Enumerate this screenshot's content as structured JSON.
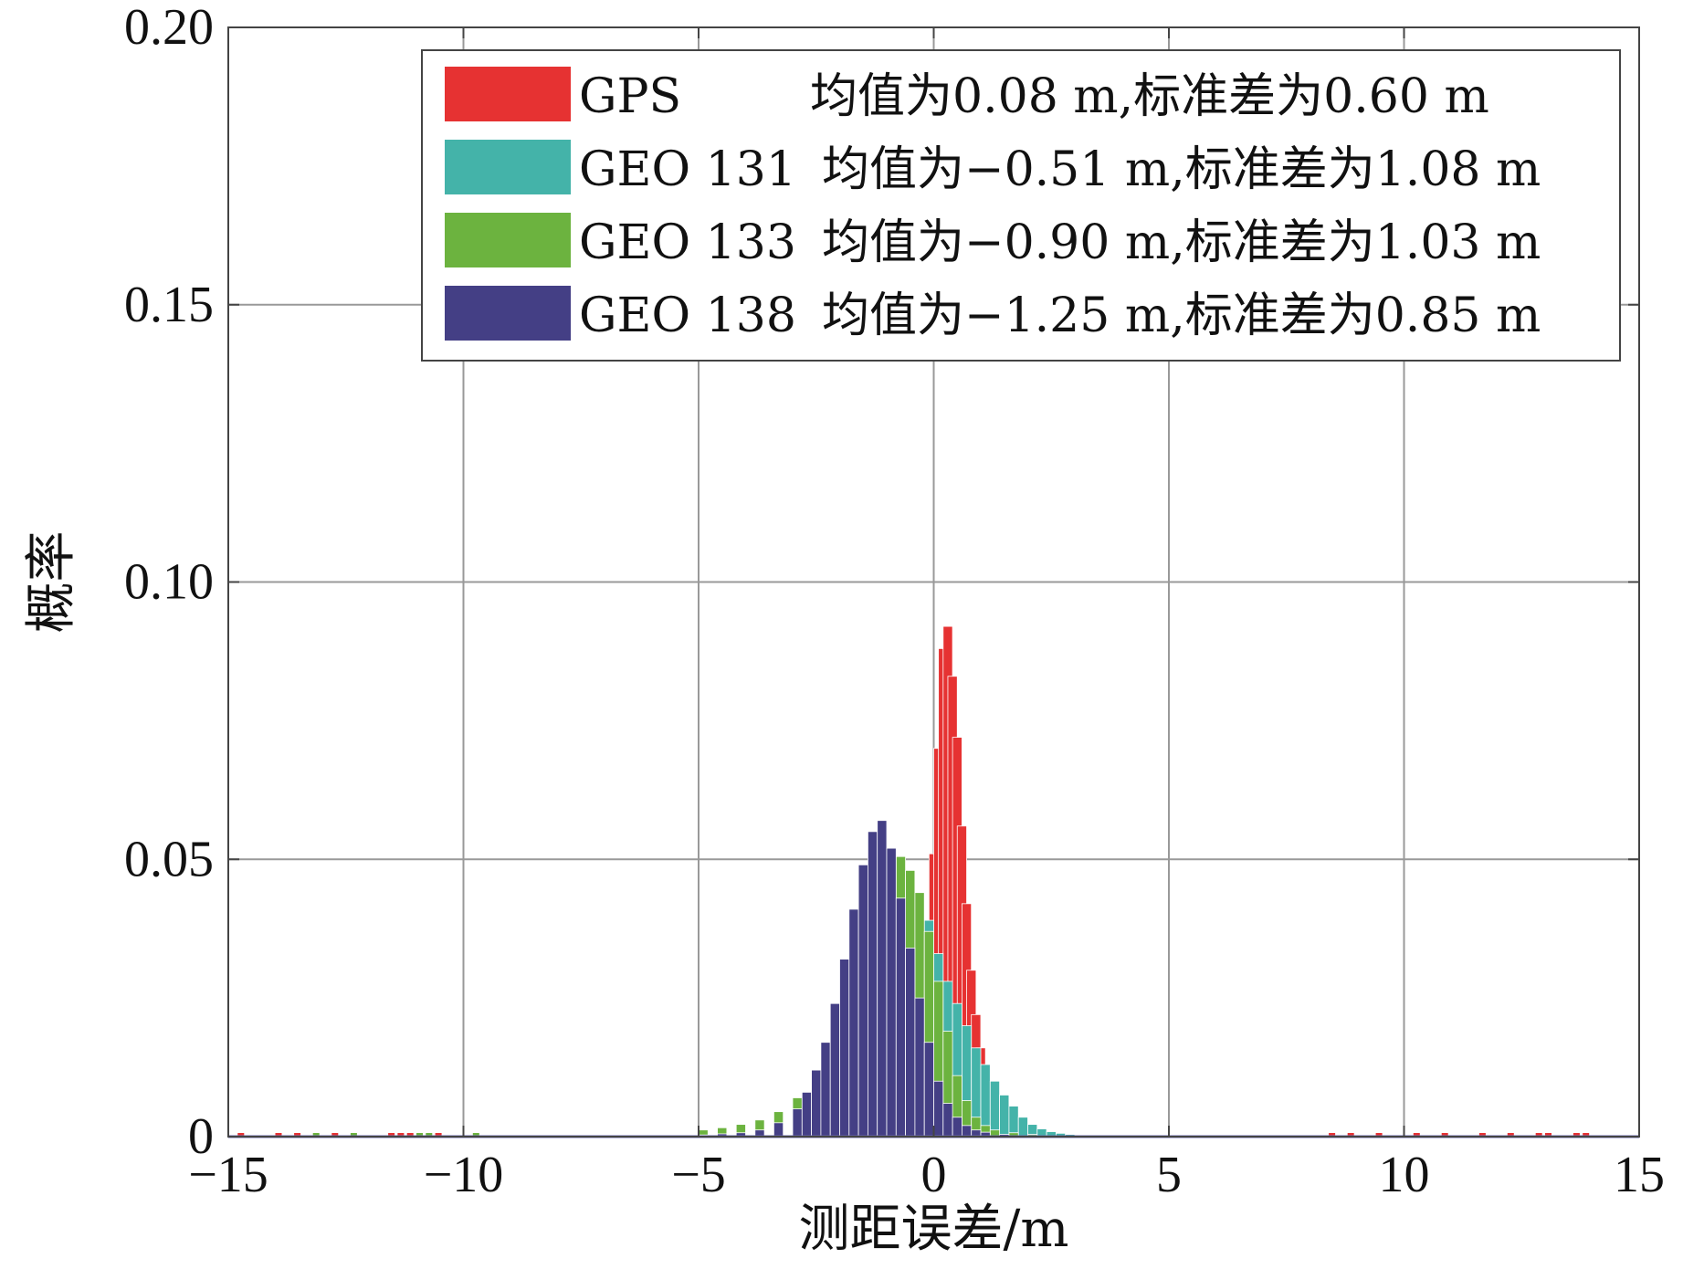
{
  "chart_data": {
    "type": "bar",
    "title": "",
    "xlabel": "测距误差/m",
    "ylabel": "概率",
    "xlim": [
      -15,
      15
    ],
    "ylim": [
      0,
      0.2
    ],
    "x_ticks": [
      -15,
      -10,
      -5,
      0,
      5,
      10,
      15
    ],
    "x_tick_labels": [
      "−15",
      "−10",
      "−5",
      "0",
      "5",
      "10",
      "15"
    ],
    "y_ticks": [
      0,
      0.05,
      0.1,
      0.15,
      0.2
    ],
    "y_tick_labels": [
      "0",
      "0.05",
      "0.10",
      "0.15",
      "0.20"
    ],
    "grid": true,
    "legend_position": "top-right",
    "bin_width": 0.2,
    "series": [
      {
        "name": "GPS",
        "legend_label": "均值为0.08 m,标准差为0.60 m",
        "color": "#e63232",
        "stats": {
          "mean": 0.08,
          "std": 0.6
        },
        "bins": [
          [
            -3.0,
            0.0005
          ],
          [
            -2.6,
            0.0008
          ],
          [
            -2.2,
            0.0011
          ],
          [
            -1.8,
            0.0015
          ],
          [
            -1.4,
            0.003
          ],
          [
            -1.0,
            0.006
          ],
          [
            -0.6,
            0.015
          ],
          [
            -0.2,
            0.036
          ],
          [
            -0.1,
            0.051
          ],
          [
            0.0,
            0.07
          ],
          [
            0.1,
            0.088
          ],
          [
            0.2,
            0.092
          ],
          [
            0.3,
            0.083
          ],
          [
            0.4,
            0.072
          ],
          [
            0.5,
            0.056
          ],
          [
            0.6,
            0.042
          ],
          [
            0.7,
            0.03
          ],
          [
            0.8,
            0.022
          ],
          [
            0.9,
            0.016
          ],
          [
            1.0,
            0.011
          ],
          [
            1.1,
            0.0075
          ],
          [
            1.3,
            0.004
          ],
          [
            1.6,
            0.002
          ],
          [
            2.0,
            0.0009
          ],
          [
            2.6,
            0.0005
          ],
          [
            3.2,
            0.0003
          ]
        ],
        "outliers": [
          -14.8,
          -14.0,
          -13.6,
          -12.8,
          -11.6,
          -11.4,
          -11.2,
          -10.6,
          8.4,
          8.8,
          9.4,
          10.2,
          10.8,
          11.6,
          12.2,
          12.8,
          13.0,
          13.6,
          13.8
        ]
      },
      {
        "name": "GEO 131",
        "legend_label": "均值为−0.51 m,标准差为1.08 m",
        "color": "#44b3a9",
        "stats": {
          "mean": -0.51,
          "std": 1.08
        },
        "bins": [
          [
            -4.6,
            0.001
          ],
          [
            -4.2,
            0.0013
          ],
          [
            -3.8,
            0.0018
          ],
          [
            -3.4,
            0.0025
          ],
          [
            -3.0,
            0.004
          ],
          [
            -2.6,
            0.006
          ],
          [
            -2.2,
            0.01
          ],
          [
            -1.8,
            0.017
          ],
          [
            -1.4,
            0.027
          ],
          [
            -1.0,
            0.038
          ],
          [
            -0.8,
            0.044
          ],
          [
            -0.6,
            0.048
          ],
          [
            -0.4,
            0.044
          ],
          [
            -0.2,
            0.039
          ],
          [
            0.0,
            0.033
          ],
          [
            0.2,
            0.028
          ],
          [
            0.4,
            0.024
          ],
          [
            0.6,
            0.02
          ],
          [
            0.8,
            0.016
          ],
          [
            1.0,
            0.013
          ],
          [
            1.2,
            0.01
          ],
          [
            1.4,
            0.0075
          ],
          [
            1.6,
            0.0055
          ],
          [
            1.8,
            0.0035
          ],
          [
            2.0,
            0.0022
          ],
          [
            2.2,
            0.0014
          ],
          [
            2.4,
            0.0009
          ],
          [
            2.6,
            0.0006
          ],
          [
            2.8,
            0.0004
          ]
        ],
        "outliers": []
      },
      {
        "name": "GEO 133",
        "legend_label": "均值为−0.90 m,标准差为1.03 m",
        "color": "#6cb33f",
        "stats": {
          "mean": -0.9,
          "std": 1.03
        },
        "bins": [
          [
            -5.0,
            0.0012
          ],
          [
            -4.6,
            0.0016
          ],
          [
            -4.2,
            0.0022
          ],
          [
            -3.8,
            0.003
          ],
          [
            -3.4,
            0.0045
          ],
          [
            -3.0,
            0.007
          ],
          [
            -2.6,
            0.011
          ],
          [
            -2.2,
            0.018
          ],
          [
            -1.8,
            0.027
          ],
          [
            -1.4,
            0.037
          ],
          [
            -1.2,
            0.042
          ],
          [
            -1.0,
            0.047
          ],
          [
            -0.8,
            0.0505
          ],
          [
            -0.6,
            0.048
          ],
          [
            -0.4,
            0.044
          ],
          [
            -0.2,
            0.037
          ],
          [
            0.0,
            0.028
          ],
          [
            0.2,
            0.019
          ],
          [
            0.4,
            0.011
          ],
          [
            0.6,
            0.0065
          ],
          [
            0.8,
            0.0035
          ],
          [
            1.0,
            0.002
          ],
          [
            1.2,
            0.0012
          ],
          [
            1.6,
            0.0007
          ],
          [
            2.0,
            0.0004
          ]
        ],
        "outliers": [
          -13.2,
          -12.4,
          -11.0,
          -10.8,
          -9.8
        ]
      },
      {
        "name": "GEO 138",
        "legend_label": "均值为−1.25 m,标准差为0.85 m",
        "color": "#443f85",
        "stats": {
          "mean": -1.25,
          "std": 0.85
        },
        "bins": [
          [
            -5.0,
            0.0003
          ],
          [
            -4.6,
            0.0005
          ],
          [
            -4.2,
            0.0007
          ],
          [
            -3.8,
            0.0012
          ],
          [
            -3.4,
            0.0025
          ],
          [
            -3.0,
            0.005
          ],
          [
            -2.8,
            0.008
          ],
          [
            -2.6,
            0.012
          ],
          [
            -2.4,
            0.017
          ],
          [
            -2.2,
            0.024
          ],
          [
            -2.0,
            0.032
          ],
          [
            -1.8,
            0.041
          ],
          [
            -1.6,
            0.049
          ],
          [
            -1.4,
            0.055
          ],
          [
            -1.2,
            0.057
          ],
          [
            -1.0,
            0.052
          ],
          [
            -0.8,
            0.043
          ],
          [
            -0.6,
            0.034
          ],
          [
            -0.4,
            0.025
          ],
          [
            -0.2,
            0.017
          ],
          [
            0.0,
            0.01
          ],
          [
            0.2,
            0.006
          ],
          [
            0.4,
            0.0035
          ],
          [
            0.6,
            0.002
          ],
          [
            0.8,
            0.0012
          ],
          [
            1.0,
            0.0008
          ],
          [
            1.4,
            0.0004
          ],
          [
            2.0,
            0.0002
          ]
        ],
        "outliers": []
      }
    ]
  }
}
